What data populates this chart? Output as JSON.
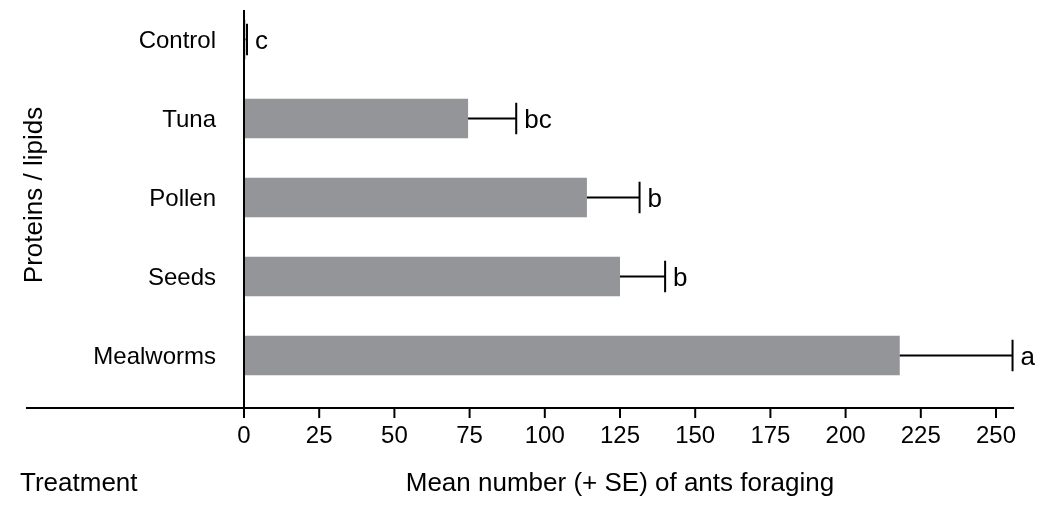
{
  "chart_data": {
    "type": "bar",
    "orientation": "horizontal",
    "xlabel": "Mean number (+ SE) of ants foraging",
    "ylabel": "Proteins / lipids",
    "categories": [
      "Control",
      "Tuna",
      "Pollen",
      "Seeds",
      "Mealworms"
    ],
    "values": [
      0.5,
      74.5,
      114,
      125,
      218
    ],
    "errors": [
      [
        0.5,
        1
      ],
      [
        74.5,
        90.5
      ],
      [
        114,
        131.5
      ],
      [
        125,
        140
      ],
      [
        218,
        255.5
      ]
    ],
    "color": "#939598",
    "xlim": [
      0,
      256
    ],
    "xticks": [
      0,
      25,
      50,
      75,
      100,
      125,
      150,
      175,
      200,
      225,
      250
    ],
    "grid": false,
    "annotations": [
      "c",
      "bc",
      "b",
      "b",
      "a",
      "Treatment"
    ]
  }
}
